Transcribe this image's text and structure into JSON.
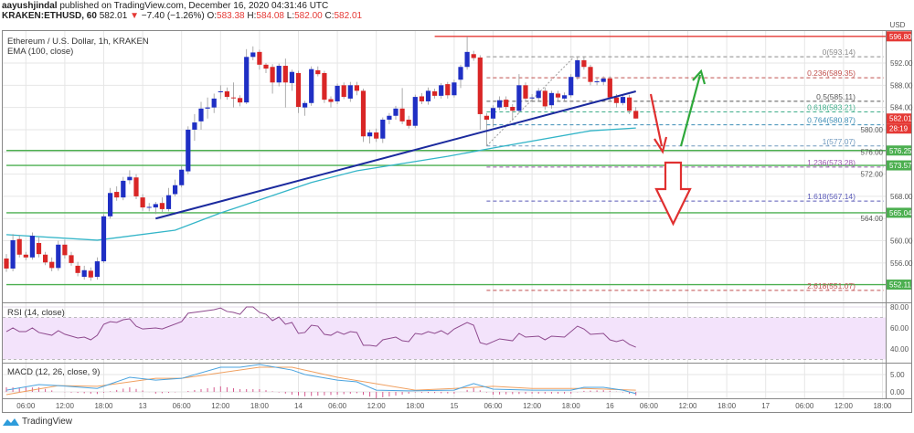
{
  "header": {
    "author": "aayushjindal",
    "published": "published on TradingView.com, December 16, 2020 04:31:46 UTC",
    "symbol": "KRAKEN:ETHUSD, 60",
    "last": "582.01",
    "change": "−7.40 (−1.26%)",
    "o_label": "O:",
    "o": "583.38",
    "h_label": "H:",
    "h": "584.08",
    "l_label": "L:",
    "l": "582.00",
    "c_label": "C:",
    "c": "582.01"
  },
  "footer": {
    "brand": "TradingView"
  },
  "chart_data": {
    "type": "candlestick",
    "title": "Ethereum / U.S. Dollar, 1h, KRAKEN",
    "indicator_label": "EMA (100, close)",
    "currency": "USD",
    "up_color": "#1f2fc4",
    "down_color": "#d92626",
    "ohlc": [
      [
        556.8,
        557.6,
        554.4,
        555.0
      ],
      [
        555.0,
        561.2,
        554.5,
        560.1
      ],
      [
        560.3,
        561.0,
        557.0,
        557.5
      ],
      [
        557.5,
        558.0,
        556.5,
        557.0
      ],
      [
        557.0,
        561.5,
        556.6,
        560.9
      ],
      [
        559.6,
        560.6,
        557.0,
        557.6
      ],
      [
        557.5,
        558.0,
        555.6,
        556.1
      ],
      [
        556.2,
        557.0,
        554.5,
        555.1
      ],
      [
        555.1,
        560.0,
        554.6,
        559.3
      ],
      [
        559.3,
        560.2,
        556.8,
        557.4
      ],
      [
        557.4,
        558.0,
        555.5,
        556.0
      ],
      [
        555.5,
        556.2,
        553.6,
        554.2
      ],
      [
        553.5,
        555.5,
        553.0,
        554.7
      ],
      [
        554.6,
        555.2,
        552.8,
        553.4
      ],
      [
        553.5,
        557.0,
        553.0,
        556.3
      ],
      [
        556.3,
        564.8,
        556.0,
        564.4
      ],
      [
        564.4,
        569.5,
        564.0,
        568.6
      ],
      [
        568.8,
        569.8,
        567.2,
        567.8
      ],
      [
        567.8,
        571.5,
        567.3,
        570.8
      ],
      [
        570.9,
        572.7,
        570.2,
        571.5
      ],
      [
        571.4,
        572.0,
        567.5,
        568.0
      ],
      [
        567.8,
        568.4,
        565.4,
        566.0
      ],
      [
        566.0,
        566.8,
        565.3,
        566.1
      ],
      [
        566.0,
        567.0,
        564.8,
        566.6
      ],
      [
        566.8,
        567.8,
        565.2,
        565.7
      ],
      [
        565.7,
        569.5,
        565.3,
        568.2
      ],
      [
        568.4,
        571.0,
        568.0,
        570.0
      ],
      [
        570.0,
        573.5,
        569.6,
        572.8
      ],
      [
        572.5,
        580.6,
        572.0,
        580.0
      ],
      [
        580.0,
        582.8,
        578.0,
        581.3
      ],
      [
        581.5,
        585.0,
        580.0,
        583.8
      ],
      [
        583.8,
        585.8,
        582.0,
        584.0
      ],
      [
        584.0,
        586.5,
        583.0,
        585.6
      ],
      [
        586.8,
        588.0,
        585.5,
        586.9
      ],
      [
        586.9,
        587.6,
        585.4,
        585.9
      ],
      [
        585.8,
        588.5,
        584.0,
        585.7
      ],
      [
        585.7,
        586.2,
        584.2,
        584.9
      ],
      [
        584.9,
        594.5,
        584.6,
        593.1
      ],
      [
        593.1,
        595.0,
        592.5,
        593.9
      ],
      [
        594.0,
        594.4,
        590.8,
        591.7
      ],
      [
        591.7,
        592.0,
        590.2,
        591.0
      ],
      [
        591.3,
        591.8,
        586.5,
        588.5
      ],
      [
        588.5,
        591.9,
        587.8,
        591.5
      ],
      [
        591.5,
        592.8,
        584.0,
        588.5
      ],
      [
        588.4,
        590.8,
        587.0,
        590.4
      ],
      [
        590.2,
        590.6,
        583.0,
        584.1
      ],
      [
        584.0,
        585.2,
        582.5,
        584.8
      ],
      [
        584.8,
        591.4,
        584.3,
        590.9
      ],
      [
        590.7,
        591.4,
        589.6,
        590.0
      ],
      [
        590.2,
        590.6,
        584.8,
        585.4
      ],
      [
        585.5,
        586.0,
        584.0,
        585.0
      ],
      [
        585.1,
        588.3,
        584.6,
        587.9
      ],
      [
        588.0,
        588.5,
        585.5,
        585.9
      ],
      [
        585.6,
        588.6,
        585.0,
        588.0
      ],
      [
        588.0,
        588.6,
        586.2,
        587.0
      ],
      [
        587.0,
        587.4,
        577.8,
        578.8
      ],
      [
        578.8,
        580.0,
        577.5,
        579.5
      ],
      [
        579.5,
        580.2,
        577.8,
        578.4
      ],
      [
        578.4,
        582.2,
        577.6,
        581.8
      ],
      [
        581.8,
        583.0,
        581.0,
        582.5
      ],
      [
        582.5,
        584.3,
        581.8,
        583.8
      ],
      [
        583.8,
        587.5,
        581.0,
        581.5
      ],
      [
        581.8,
        582.5,
        580.2,
        580.7
      ],
      [
        580.7,
        586.3,
        580.3,
        585.9
      ],
      [
        586.0,
        586.6,
        584.6,
        585.1
      ],
      [
        585.1,
        587.6,
        584.5,
        587.0
      ],
      [
        586.9,
        587.4,
        585.6,
        586.1
      ],
      [
        586.1,
        588.4,
        585.6,
        588.0
      ],
      [
        588.2,
        588.6,
        585.6,
        586.2
      ],
      [
        586.2,
        589.0,
        585.8,
        588.5
      ],
      [
        589.0,
        591.7,
        587.5,
        591.3
      ],
      [
        591.3,
        596.8,
        590.8,
        594.0
      ],
      [
        593.6,
        594.2,
        592.4,
        592.9
      ],
      [
        593.0,
        593.4,
        580.0,
        582.8
      ],
      [
        582.5,
        583.0,
        577.1,
        581.8
      ],
      [
        582.0,
        584.4,
        580.5,
        583.9
      ],
      [
        584.0,
        586.0,
        583.5,
        585.3
      ],
      [
        585.4,
        586.0,
        583.6,
        584.1
      ],
      [
        584.1,
        584.6,
        581.6,
        583.4
      ],
      [
        583.4,
        590.0,
        583.0,
        588.0
      ],
      [
        588.0,
        588.5,
        585.0,
        585.6
      ],
      [
        585.7,
        586.4,
        585.2,
        585.8
      ],
      [
        585.7,
        587.5,
        585.2,
        587.0
      ],
      [
        587.0,
        587.6,
        583.6,
        584.2
      ],
      [
        584.4,
        587.0,
        583.8,
        586.6
      ],
      [
        586.5,
        587.0,
        585.2,
        585.8
      ],
      [
        585.6,
        586.7,
        585.1,
        586.2
      ],
      [
        586.2,
        590.0,
        585.8,
        589.5
      ],
      [
        589.5,
        593.1,
        589.0,
        592.5
      ],
      [
        592.5,
        593.1,
        590.8,
        591.3
      ],
      [
        591.3,
        591.7,
        588.0,
        588.6
      ],
      [
        588.6,
        589.2,
        588.0,
        588.7
      ],
      [
        588.6,
        589.6,
        588.0,
        589.2
      ],
      [
        589.2,
        589.6,
        585.0,
        585.8
      ],
      [
        585.8,
        586.4,
        584.0,
        584.8
      ],
      [
        584.8,
        586.4,
        584.4,
        585.9
      ],
      [
        585.8,
        586.3,
        582.8,
        583.4
      ],
      [
        583.38,
        584.08,
        582.0,
        582.01
      ]
    ],
    "ema_100": {
      "color": "#33b5c8",
      "points": [
        [
          0,
          561.1
        ],
        [
          14,
          560.1
        ],
        [
          26,
          561.9
        ],
        [
          33,
          565.0
        ],
        [
          47,
          570.5
        ],
        [
          54,
          572.6
        ],
        [
          68,
          575.2
        ],
        [
          75,
          576.7
        ],
        [
          90,
          579.8
        ],
        [
          97,
          580.3
        ]
      ]
    },
    "trendline": {
      "color": "#1b2a9e",
      "from": [
        23,
        564.0
      ],
      "to": [
        97,
        586.9
      ]
    },
    "x_axis": {
      "labels": [
        "06:00",
        "12:00",
        "18:00",
        "13",
        "06:00",
        "12:00",
        "18:00",
        "14",
        "06:00",
        "12:00",
        "18:00",
        "15",
        "06:00",
        "12:00",
        "18:00",
        "16",
        "06:00",
        "12:00",
        "18:00",
        "17",
        "06:00",
        "12:00",
        "18:00"
      ]
    },
    "price_axis": {
      "ticks": [
        "592.00",
        "588.00",
        "584.00",
        "580.00",
        "576.00",
        "572.00",
        "568.00",
        "564.00",
        "560.00",
        "556.00"
      ]
    },
    "horizontal_levels": [
      {
        "label": "596.80",
        "color": "#e53935",
        "from": 66
      },
      {
        "label": "576.25",
        "color": "#4caf50",
        "from": 0
      },
      {
        "label": "573.57",
        "color": "#4caf50",
        "from": 0
      },
      {
        "label": "565.04",
        "color": "#4caf50",
        "from": 0
      },
      {
        "label": "552.11",
        "color": "#4caf50",
        "from": 0
      }
    ],
    "last_price_tag": {
      "label": "582.01",
      "countdown": "28:19",
      "color": "#e53935"
    },
    "fibonacci": {
      "from": [
        74,
        577.07
      ],
      "to": [
        87.5,
        593.14
      ],
      "levels": [
        {
          "label": "0(593.14)",
          "price": 593.14,
          "color": "#8a8a8a"
        },
        {
          "label": "0.236(589.35)",
          "price": 589.35,
          "color": "#c0504d"
        },
        {
          "label": "0.5(585.11)",
          "price": 585.11,
          "color": "#555555"
        },
        {
          "label": "0.618(583.21)",
          "price": 583.21,
          "color": "#3fae8a"
        },
        {
          "label": "0.764(580.87)",
          "price": 580.87,
          "color": "#3d8db5"
        },
        {
          "label": "1(577.07)",
          "price": 577.07,
          "color": "#6f98bd"
        },
        {
          "label": "1.236(573.28)",
          "price": 573.28,
          "color": "#9c5ab0"
        },
        {
          "label": "1.618(567.14)",
          "price": 567.14,
          "color": "#5a5ab8"
        },
        {
          "label": "2.618(551.07)",
          "price": 551.07,
          "color": "#c05050"
        }
      ]
    },
    "annotations": [
      {
        "type": "arrow",
        "direction": "down",
        "color": "#e03030"
      },
      {
        "type": "arrow",
        "direction": "up",
        "color": "#2ea83a"
      },
      {
        "type": "block-arrow",
        "direction": "down",
        "color": "#e03030"
      }
    ],
    "rsi": {
      "label": "RSI (14, close)",
      "color": "#8e4a8e",
      "band": [
        30,
        70
      ],
      "band_color": "#f3e3fb",
      "ticks": [
        "80.00",
        "60.00",
        "40.00"
      ],
      "points": [
        [
          0,
          56.5
        ],
        [
          1,
          60
        ],
        [
          2,
          56.5
        ],
        [
          3,
          56.5
        ],
        [
          4,
          60
        ],
        [
          5,
          55.7
        ],
        [
          7,
          53
        ],
        [
          8,
          57.4
        ],
        [
          9,
          54
        ],
        [
          11,
          50.4
        ],
        [
          12,
          51.3
        ],
        [
          13,
          48.7
        ],
        [
          14,
          53
        ],
        [
          15,
          63.5
        ],
        [
          16,
          66
        ],
        [
          17,
          65.2
        ],
        [
          18,
          67.8
        ],
        [
          19,
          68.7
        ],
        [
          20,
          61.7
        ],
        [
          21,
          59
        ],
        [
          23,
          60
        ],
        [
          24,
          59
        ],
        [
          27,
          66
        ],
        [
          28,
          74
        ],
        [
          30,
          75.7
        ],
        [
          32,
          77.4
        ],
        [
          33,
          79
        ],
        [
          34,
          75.7
        ],
        [
          35,
          74.8
        ],
        [
          36,
          73
        ],
        [
          37,
          80
        ],
        [
          38,
          80
        ],
        [
          39,
          74.8
        ],
        [
          40,
          73
        ],
        [
          41,
          67
        ],
        [
          42,
          70.4
        ],
        [
          43,
          63.5
        ],
        [
          44,
          65.2
        ],
        [
          45,
          54.8
        ],
        [
          46,
          55.7
        ],
        [
          47,
          62.6
        ],
        [
          48,
          61.7
        ],
        [
          49,
          53.9
        ],
        [
          50,
          53
        ],
        [
          51,
          56.5
        ],
        [
          52,
          53.9
        ],
        [
          53,
          56.5
        ],
        [
          54,
          55.7
        ],
        [
          55,
          43.5
        ],
        [
          56,
          43.5
        ],
        [
          57,
          42.6
        ],
        [
          58,
          48.7
        ],
        [
          60,
          51.3
        ],
        [
          61,
          47.8
        ],
        [
          62,
          47
        ],
        [
          63,
          54.8
        ],
        [
          64,
          53.9
        ],
        [
          65,
          56.5
        ],
        [
          66,
          54.8
        ],
        [
          67,
          57.4
        ],
        [
          68,
          53.9
        ],
        [
          69,
          59
        ],
        [
          71,
          65.2
        ],
        [
          72,
          62.6
        ],
        [
          73,
          46
        ],
        [
          74,
          44.3
        ],
        [
          76,
          49.6
        ],
        [
          78,
          47.8
        ],
        [
          79,
          54.8
        ],
        [
          80,
          51.3
        ],
        [
          82,
          52.2
        ],
        [
          83,
          48.7
        ],
        [
          84,
          52.2
        ],
        [
          86,
          51.3
        ],
        [
          88,
          61.7
        ],
        [
          89,
          59
        ],
        [
          90,
          53.9
        ],
        [
          92,
          54.8
        ],
        [
          93,
          48.7
        ],
        [
          94,
          47
        ],
        [
          95,
          48.7
        ],
        [
          96,
          44.3
        ],
        [
          97,
          41.7
        ]
      ]
    },
    "macd": {
      "label": "MACD (12, 26, close, 9)",
      "macd_color": "#4aa3df",
      "signal_color": "#f0a060",
      "hist_color": "#d65a8f",
      "ticks": [
        "5.00",
        "0.00"
      ],
      "macd": [
        [
          0,
          0.5
        ],
        [
          5,
          2.1
        ],
        [
          8,
          1.8
        ],
        [
          14,
          1.0
        ],
        [
          19,
          4.2
        ],
        [
          23,
          3.4
        ],
        [
          27,
          3.9
        ],
        [
          33,
          7.1
        ],
        [
          36,
          7.1
        ],
        [
          39,
          7.9
        ],
        [
          44,
          6.3
        ],
        [
          46,
          5
        ],
        [
          51,
          3.4
        ],
        [
          54,
          2.9
        ],
        [
          57,
          0.5
        ],
        [
          62,
          0.3
        ],
        [
          69,
          0.5
        ],
        [
          72,
          2.4
        ],
        [
          75,
          0.8
        ],
        [
          81,
          0.5
        ],
        [
          87,
          0.5
        ],
        [
          89,
          1.3
        ],
        [
          92,
          1.3
        ],
        [
          95,
          0.5
        ],
        [
          97,
          -0.5
        ]
      ],
      "signal": [
        [
          0,
          -0.8
        ],
        [
          8,
          1.8
        ],
        [
          14,
          1.6
        ],
        [
          23,
          3.9
        ],
        [
          27,
          3.9
        ],
        [
          39,
          7.1
        ],
        [
          44,
          7.1
        ],
        [
          51,
          4.2
        ],
        [
          63,
          0.5
        ],
        [
          69,
          1.0
        ],
        [
          75,
          1.6
        ],
        [
          81,
          1.0
        ],
        [
          89,
          1.0
        ],
        [
          97,
          0.5
        ]
      ]
    }
  }
}
